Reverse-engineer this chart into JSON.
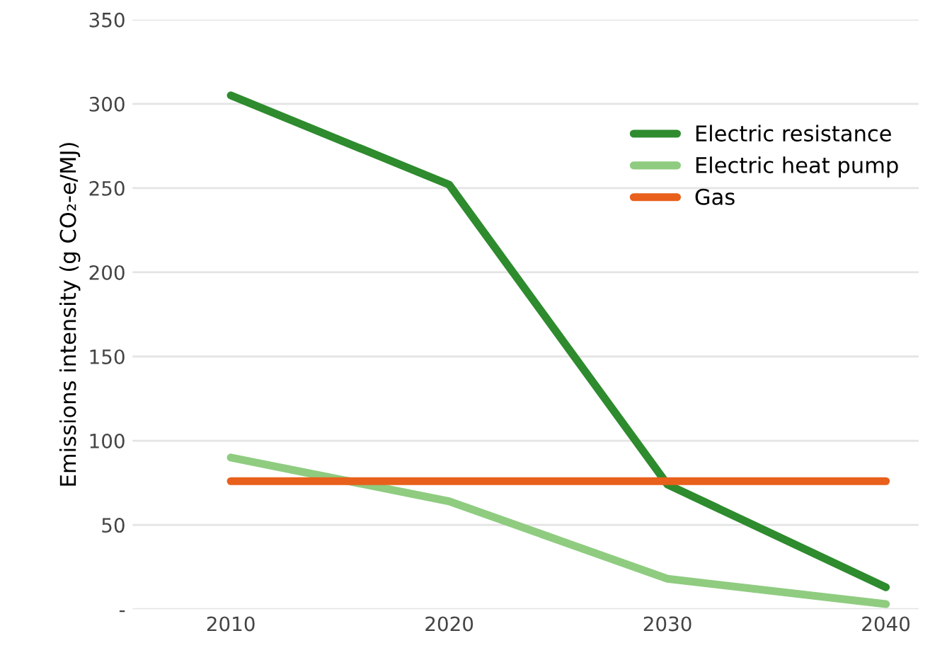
{
  "chart_data": {
    "type": "line",
    "ylabel": "Emissions intensity (g CO₂-e/MJ)",
    "categories": [
      "2010",
      "2020",
      "2030",
      "2040"
    ],
    "series": [
      {
        "name": "Electric resistance",
        "color": "#2e8b2e",
        "values": [
          305,
          252,
          74,
          13
        ]
      },
      {
        "name": "Electric heat pump",
        "color": "#8fcc80",
        "values": [
          90,
          64,
          18,
          3
        ]
      },
      {
        "name": "Gas",
        "color": "#e8601c",
        "values": [
          76,
          76,
          76,
          76
        ]
      }
    ],
    "ylim": [
      0,
      350
    ],
    "yticks": [
      {
        "value": 0,
        "label": "-"
      },
      50,
      100,
      150,
      200,
      250,
      300,
      350
    ],
    "grid": "y",
    "legend": "right",
    "marker": "none",
    "line_style": "solid"
  }
}
